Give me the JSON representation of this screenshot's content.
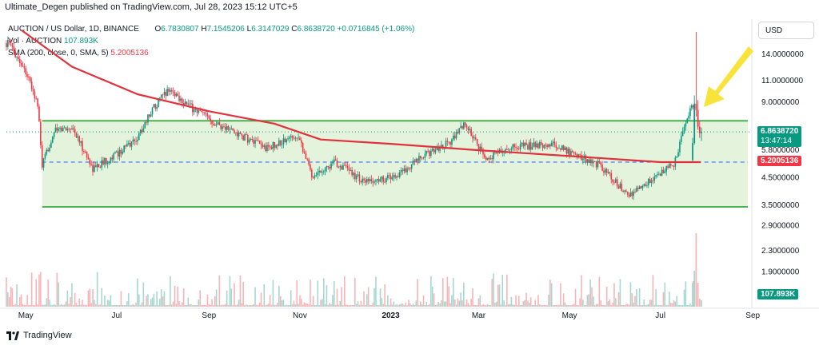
{
  "header": {
    "published": "Ultimate_Degen published on TradingView.com, Jul 28, 2023 15:12 UTC+5"
  },
  "legend": {
    "symbol": "AUCTION / US Dollar, 1D, BINANCE",
    "open_label": "O",
    "open": "6.7830807",
    "high_label": "H",
    "high": "7.1545206",
    "low_label": "L",
    "low": "6.3147029",
    "close_label": "C",
    "close": "6.8638720",
    "change": "+0.0716845 (+1.06%)",
    "vol_label": "Vol · AUCTION",
    "vol_value": "107.893K",
    "sma_label": "SMA (200, close, 0, SMA, 5)",
    "sma_value": "5.2005136"
  },
  "currency": "USD",
  "price_tag": {
    "value": "6.8638720",
    "countdown": "13:47:14"
  },
  "sma_tag": "5.2005136",
  "vol_tag": "107.893K",
  "brand": {
    "name": "TradingView"
  },
  "colors": {
    "up": "#089981",
    "down": "#f23645",
    "sma": "#e0323c",
    "channel_line": "#4caf50",
    "channel_fill": "#e3f3dc",
    "arrow": "#f7e33a",
    "dashed": "#2962ff"
  },
  "chart_data": {
    "type": "candlestick",
    "title": "AUCTION / US Dollar, 1D, BINANCE",
    "y_scale": "log",
    "y_ticks": [
      "14.0000000",
      "11.0000000",
      "9.0000000",
      "5.8000000",
      "4.5000000",
      "3.5000000",
      "2.9000000",
      "2.3000000",
      "1.9000000"
    ],
    "x_ticks": [
      "May",
      "Jul",
      "Sep",
      "Nov",
      "2023",
      "Mar",
      "May",
      "Jul",
      "Sep"
    ],
    "approx_close_path": [
      {
        "date": "2022-04-20",
        "close": 15.5
      },
      {
        "date": "2022-05-01",
        "close": 12.0
      },
      {
        "date": "2022-05-09",
        "close": 8.8
      },
      {
        "date": "2022-05-12",
        "close": 5.0
      },
      {
        "date": "2022-05-20",
        "close": 6.9
      },
      {
        "date": "2022-06-01",
        "close": 7.2
      },
      {
        "date": "2022-06-15",
        "close": 4.9
      },
      {
        "date": "2022-07-01",
        "close": 5.6
      },
      {
        "date": "2022-07-15",
        "close": 6.5
      },
      {
        "date": "2022-07-25",
        "close": 8.5
      },
      {
        "date": "2022-08-05",
        "close": 10.2
      },
      {
        "date": "2022-08-20",
        "close": 8.6
      },
      {
        "date": "2022-09-05",
        "close": 7.5
      },
      {
        "date": "2022-09-25",
        "close": 6.5
      },
      {
        "date": "2022-10-10",
        "close": 5.9
      },
      {
        "date": "2022-10-31",
        "close": 6.7
      },
      {
        "date": "2022-11-09",
        "close": 4.6
      },
      {
        "date": "2022-11-25",
        "close": 5.2
      },
      {
        "date": "2022-12-15",
        "close": 4.3
      },
      {
        "date": "2023-01-05",
        "close": 4.6
      },
      {
        "date": "2023-01-25",
        "close": 5.6
      },
      {
        "date": "2023-02-10",
        "close": 6.3
      },
      {
        "date": "2023-02-20",
        "close": 7.4
      },
      {
        "date": "2023-03-05",
        "close": 5.4
      },
      {
        "date": "2023-03-25",
        "close": 6.0
      },
      {
        "date": "2023-04-20",
        "close": 6.1
      },
      {
        "date": "2023-05-20",
        "close": 5.1
      },
      {
        "date": "2023-06-10",
        "close": 3.8
      },
      {
        "date": "2023-06-25",
        "close": 4.4
      },
      {
        "date": "2023-07-10",
        "close": 5.1
      },
      {
        "date": "2023-07-22",
        "close": 9.0
      },
      {
        "date": "2023-07-24",
        "close": 7.8
      },
      {
        "date": "2023-07-28",
        "close": 6.86
      }
    ],
    "sma200": [
      {
        "date": "2022-04-28",
        "value": 17.5
      },
      {
        "date": "2022-06-01",
        "value": 12.5
      },
      {
        "date": "2022-07-15",
        "value": 9.7
      },
      {
        "date": "2022-09-01",
        "value": 8.3
      },
      {
        "date": "2022-10-15",
        "value": 7.4
      },
      {
        "date": "2022-11-15",
        "value": 6.4
      },
      {
        "date": "2023-01-01",
        "value": 6.15
      },
      {
        "date": "2023-03-01",
        "value": 5.8
      },
      {
        "date": "2023-05-01",
        "value": 5.5
      },
      {
        "date": "2023-07-01",
        "value": 5.2
      },
      {
        "date": "2023-07-28",
        "value": 5.2005136
      }
    ],
    "channel": {
      "upper": 7.6,
      "lower": 3.45
    },
    "horizontal_dashed": 5.2
  }
}
